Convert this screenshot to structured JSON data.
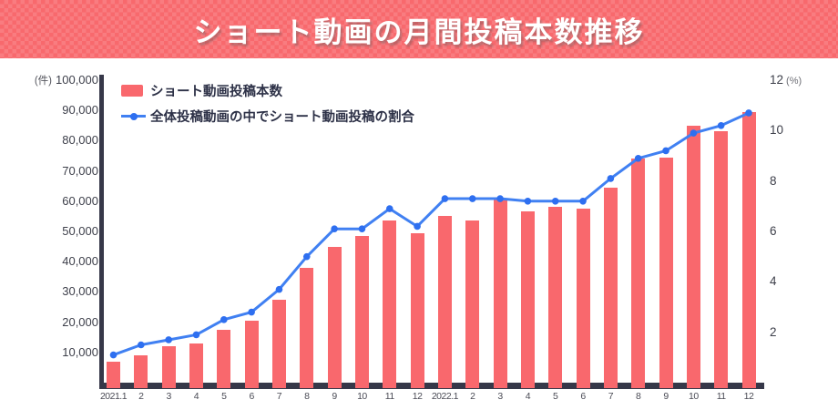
{
  "header": {
    "title": "ショート動画の月間投稿本数推移"
  },
  "legend": {
    "bar_label": "ショート動画投稿本数",
    "line_label": "全体投稿動画の中でショート動画投稿の割合"
  },
  "colors": {
    "banner_bg": "#f8696d",
    "bar": "#f9686d",
    "line": "#4080f2",
    "line_dot": "#2e6ff0",
    "axis": "#363849"
  },
  "chart_data": {
    "type": "bar",
    "title": "ショート動画の月間投稿本数推移",
    "categories": [
      "2021.1",
      "2",
      "3",
      "4",
      "5",
      "6",
      "7",
      "8",
      "9",
      "10",
      "11",
      "12",
      "2022.1",
      "2",
      "3",
      "4",
      "5",
      "6",
      "7",
      "8",
      "9",
      "10",
      "11",
      "12"
    ],
    "series": [
      {
        "name": "ショート動画投稿本数",
        "type": "bar",
        "axis": "left",
        "color": "#f9686d",
        "values": [
          7000,
          9000,
          12000,
          13000,
          17500,
          20500,
          27500,
          38000,
          45000,
          48500,
          53500,
          49500,
          55000,
          53500,
          60500,
          56500,
          58000,
          57500,
          64500,
          74000,
          74500,
          85000,
          83000,
          89500
        ]
      },
      {
        "name": "全体投稿動画の中でショート動画投稿の割合",
        "type": "line",
        "axis": "right",
        "color": "#4080f2",
        "values": [
          1.1,
          1.5,
          1.7,
          1.9,
          2.5,
          2.8,
          3.7,
          5.0,
          6.1,
          6.1,
          6.9,
          6.2,
          7.3,
          7.3,
          7.3,
          7.2,
          7.2,
          7.2,
          8.1,
          8.9,
          9.2,
          9.9,
          10.2,
          10.7
        ]
      }
    ],
    "left_axis": {
      "unit_label": "(件)",
      "min": 0,
      "max": 100000,
      "tick_step": 10000
    },
    "right_axis": {
      "unit_label": "(%)",
      "min": 0,
      "max": 12,
      "tick_step": 2
    },
    "grid": false,
    "legend_position": "top-left-inside"
  }
}
